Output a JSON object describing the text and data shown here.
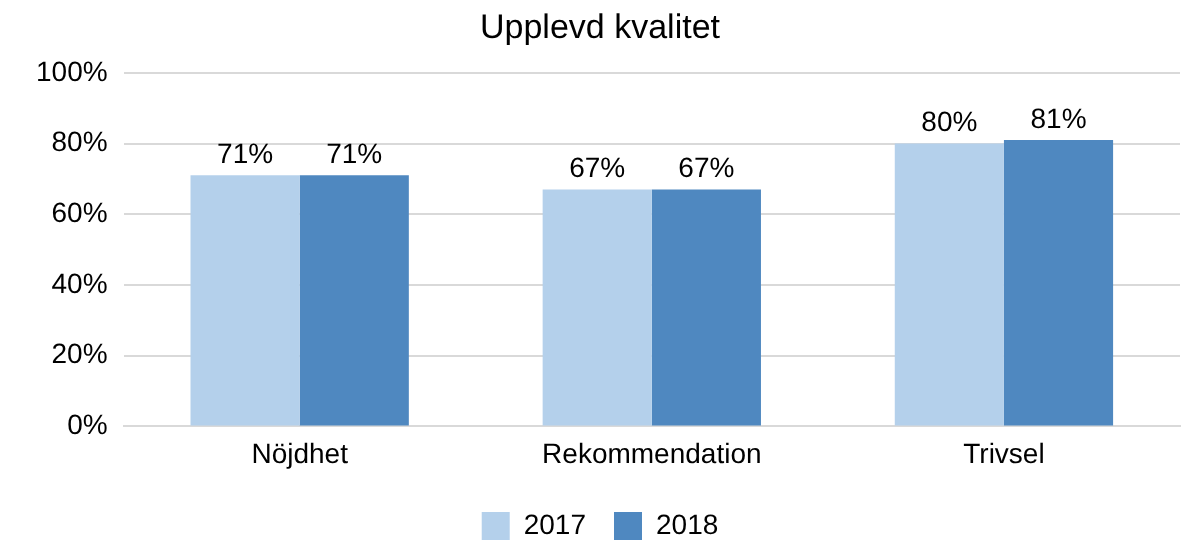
{
  "chart_data": {
    "type": "bar",
    "title": "Upplevd kvalitet",
    "categories": [
      "Nöjdhet",
      "Rekommendation",
      "Trivsel"
    ],
    "series": [
      {
        "name": "2017",
        "color": "#b4d0eb",
        "values": [
          71,
          67,
          80
        ],
        "value_labels": [
          "71%",
          "67%",
          "80%"
        ]
      },
      {
        "name": "2018",
        "color": "#4f88c0",
        "values": [
          71,
          67,
          81
        ],
        "value_labels": [
          "71%",
          "67%",
          "81%"
        ]
      }
    ],
    "ylim": [
      0,
      100
    ],
    "yticks": [
      {
        "value": 0,
        "label": "0%"
      },
      {
        "value": 20,
        "label": "20%"
      },
      {
        "value": 40,
        "label": "40%"
      },
      {
        "value": 60,
        "label": "60%"
      },
      {
        "value": 80,
        "label": "80%"
      },
      {
        "value": 100,
        "label": "100%"
      }
    ],
    "grid": "y",
    "legend": "bottom"
  }
}
